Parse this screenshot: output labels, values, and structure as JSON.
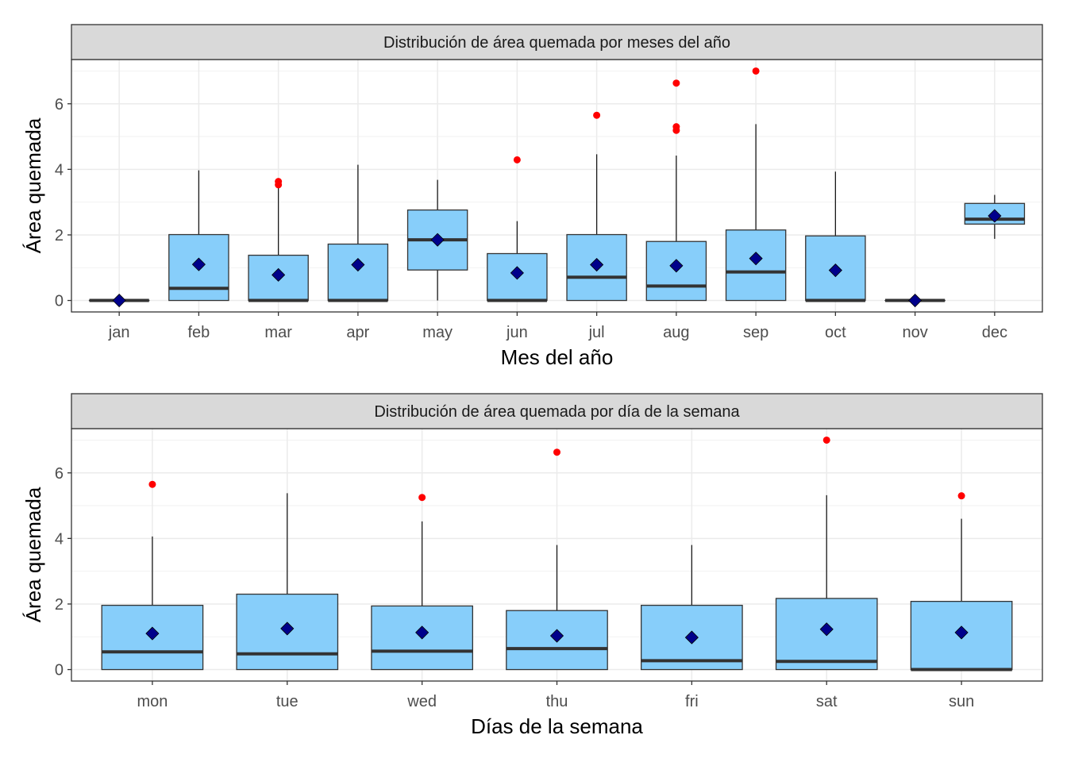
{
  "chart_data": [
    {
      "type": "boxplot",
      "title": "Distribución de área quemada por meses del año",
      "xlabel": "Mes del año",
      "ylabel": "Área quemada",
      "ylim": [
        -0.35,
        7.35
      ],
      "yticks": [
        0,
        2,
        4,
        6
      ],
      "grid": true,
      "legend": "none",
      "colors": {
        "box_fill": "#87CEFA",
        "median": "#333333",
        "mean": "#00008B",
        "outlier": "#FF0000",
        "strip_fill": "#D9D9D9"
      },
      "categories": [
        "jan",
        "feb",
        "mar",
        "apr",
        "may",
        "jun",
        "jul",
        "aug",
        "sep",
        "oct",
        "nov",
        "dec"
      ],
      "boxes": [
        {
          "q1": 0,
          "median": 0,
          "q3": 0,
          "whisker_low": 0,
          "whisker_high": 0,
          "mean": 0,
          "outliers": []
        },
        {
          "q1": 0,
          "median": 0.37,
          "q3": 2.01,
          "whisker_low": 0,
          "whisker_high": 3.97,
          "mean": 1.1,
          "outliers": []
        },
        {
          "q1": 0,
          "median": 0,
          "q3": 1.38,
          "whisker_low": 0,
          "whisker_high": 3.5,
          "mean": 0.78,
          "outliers": [
            3.53,
            3.63
          ]
        },
        {
          "q1": 0,
          "median": 0,
          "q3": 1.72,
          "whisker_low": 0,
          "whisker_high": 4.14,
          "mean": 1.09,
          "outliers": []
        },
        {
          "q1": 0.93,
          "median": 1.85,
          "q3": 2.76,
          "whisker_low": 0,
          "whisker_high": 3.68,
          "mean": 1.85,
          "outliers": []
        },
        {
          "q1": 0,
          "median": 0,
          "q3": 1.43,
          "whisker_low": 0,
          "whisker_high": 2.42,
          "mean": 0.84,
          "outliers": [
            4.29
          ]
        },
        {
          "q1": 0,
          "median": 0.71,
          "q3": 2.01,
          "whisker_low": 0,
          "whisker_high": 4.46,
          "mean": 1.09,
          "outliers": [
            5.65
          ]
        },
        {
          "q1": 0,
          "median": 0.44,
          "q3": 1.8,
          "whisker_low": 0,
          "whisker_high": 4.42,
          "mean": 1.06,
          "outliers": [
            5.19,
            5.3,
            6.63
          ]
        },
        {
          "q1": 0,
          "median": 0.87,
          "q3": 2.15,
          "whisker_low": 0,
          "whisker_high": 5.38,
          "mean": 1.28,
          "outliers": [
            7.0
          ]
        },
        {
          "q1": 0,
          "median": 0,
          "q3": 1.97,
          "whisker_low": 0,
          "whisker_high": 3.93,
          "mean": 0.92,
          "outliers": []
        },
        {
          "q1": 0,
          "median": 0,
          "q3": 0,
          "whisker_low": 0,
          "whisker_high": 0,
          "mean": 0,
          "outliers": []
        },
        {
          "q1": 2.33,
          "median": 2.48,
          "q3": 2.96,
          "whisker_low": 1.88,
          "whisker_high": 3.22,
          "mean": 2.58,
          "outliers": []
        }
      ]
    },
    {
      "type": "boxplot",
      "title": "Distribución de área quemada por día de la semana",
      "xlabel": "Días de la semana",
      "ylabel": "Área quemada",
      "ylim": [
        -0.35,
        7.35
      ],
      "yticks": [
        0,
        2,
        4,
        6
      ],
      "grid": true,
      "legend": "none",
      "colors": {
        "box_fill": "#87CEFA",
        "median": "#333333",
        "mean": "#00008B",
        "outlier": "#FF0000",
        "strip_fill": "#D9D9D9"
      },
      "categories": [
        "mon",
        "tue",
        "wed",
        "thu",
        "fri",
        "sat",
        "sun"
      ],
      "boxes": [
        {
          "q1": 0,
          "median": 0.54,
          "q3": 1.96,
          "whisker_low": 0,
          "whisker_high": 4.06,
          "mean": 1.1,
          "outliers": [
            5.65
          ]
        },
        {
          "q1": 0,
          "median": 0.48,
          "q3": 2.3,
          "whisker_low": 0,
          "whisker_high": 5.38,
          "mean": 1.25,
          "outliers": []
        },
        {
          "q1": 0,
          "median": 0.56,
          "q3": 1.94,
          "whisker_low": 0,
          "whisker_high": 4.52,
          "mean": 1.13,
          "outliers": [
            5.25
          ]
        },
        {
          "q1": 0,
          "median": 0.64,
          "q3": 1.8,
          "whisker_low": 0,
          "whisker_high": 3.8,
          "mean": 1.03,
          "outliers": [
            6.63
          ]
        },
        {
          "q1": 0,
          "median": 0.27,
          "q3": 1.96,
          "whisker_low": 0,
          "whisker_high": 3.8,
          "mean": 0.98,
          "outliers": []
        },
        {
          "q1": 0,
          "median": 0.25,
          "q3": 2.17,
          "whisker_low": 0,
          "whisker_high": 5.32,
          "mean": 1.23,
          "outliers": [
            7.0
          ]
        },
        {
          "q1": 0,
          "median": 0,
          "q3": 2.08,
          "whisker_low": 0,
          "whisker_high": 4.6,
          "mean": 1.13,
          "outliers": [
            5.3
          ]
        }
      ]
    }
  ]
}
